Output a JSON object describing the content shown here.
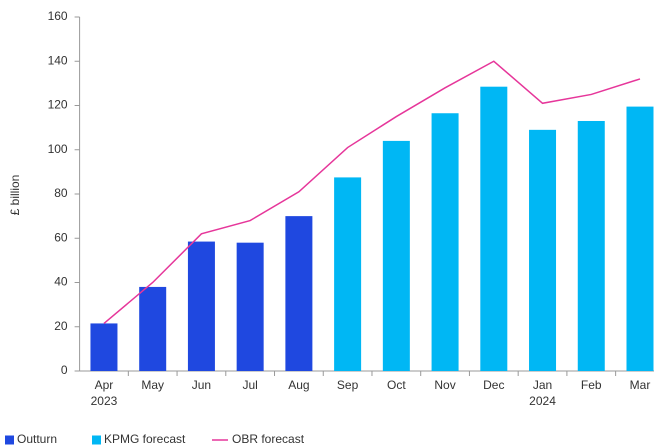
{
  "chart_data": {
    "type": "bar",
    "y_label": "£ billion",
    "categories": [
      "Apr",
      "May",
      "Jun",
      "Jul",
      "Aug",
      "Sep",
      "Oct",
      "Nov",
      "Dec",
      "Jan",
      "Feb",
      "Mar"
    ],
    "category_years": [
      "2023",
      null,
      null,
      null,
      null,
      null,
      null,
      null,
      null,
      "2024",
      null,
      null
    ],
    "series": [
      {
        "name": "Outturn",
        "color": "#1f48e0",
        "kind": "bar",
        "values": [
          21.5,
          38,
          58.5,
          58,
          70,
          null,
          null,
          null,
          null,
          null,
          null,
          null
        ]
      },
      {
        "name": "KPMG forecast",
        "color": "#00b7f4",
        "kind": "bar",
        "values": [
          null,
          null,
          null,
          null,
          null,
          87.5,
          104,
          116.5,
          128.5,
          109,
          113,
          119.5
        ]
      },
      {
        "name": "OBR forecast",
        "color": "#e6369a",
        "kind": "line",
        "values": [
          21.5,
          40,
          62,
          68,
          81,
          101,
          115,
          128,
          140,
          121,
          125,
          132
        ]
      }
    ],
    "ylim": [
      0,
      160
    ],
    "yticks": [
      0,
      20,
      40,
      60,
      80,
      100,
      120,
      140,
      160
    ],
    "grid": false
  }
}
